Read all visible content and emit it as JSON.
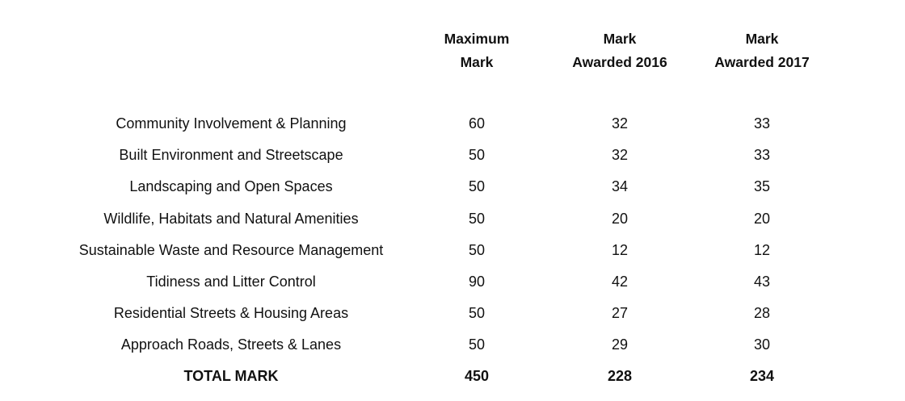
{
  "table": {
    "headers": {
      "maximum": [
        "Maximum",
        "Mark"
      ],
      "awarded_2016": [
        "Mark",
        "Awarded 2016"
      ],
      "awarded_2017": [
        "Mark",
        "Awarded 2017"
      ]
    },
    "rows": [
      {
        "category": "Community Involvement & Planning",
        "maximum": "60",
        "awarded_2016": "32",
        "awarded_2017": "33"
      },
      {
        "category": "Built Environment and Streetscape",
        "maximum": "50",
        "awarded_2016": "32",
        "awarded_2017": "33"
      },
      {
        "category": "Landscaping and Open Spaces",
        "maximum": "50",
        "awarded_2016": "34",
        "awarded_2017": "35"
      },
      {
        "category": "Wildlife, Habitats and Natural Amenities",
        "maximum": "50",
        "awarded_2016": "20",
        "awarded_2017": "20"
      },
      {
        "category": "Sustainable Waste and Resource Management",
        "maximum": "50",
        "awarded_2016": "12",
        "awarded_2017": "12"
      },
      {
        "category": "Tidiness and Litter Control",
        "maximum": "90",
        "awarded_2016": "42",
        "awarded_2017": "43"
      },
      {
        "category": "Residential Streets & Housing Areas",
        "maximum": "50",
        "awarded_2016": "27",
        "awarded_2017": "28"
      },
      {
        "category": "Approach Roads, Streets & Lanes",
        "maximum": "50",
        "awarded_2016": "29",
        "awarded_2017": "30"
      }
    ],
    "total": {
      "category": "TOTAL MARK",
      "maximum": "450",
      "awarded_2016": "228",
      "awarded_2017": "234"
    }
  }
}
